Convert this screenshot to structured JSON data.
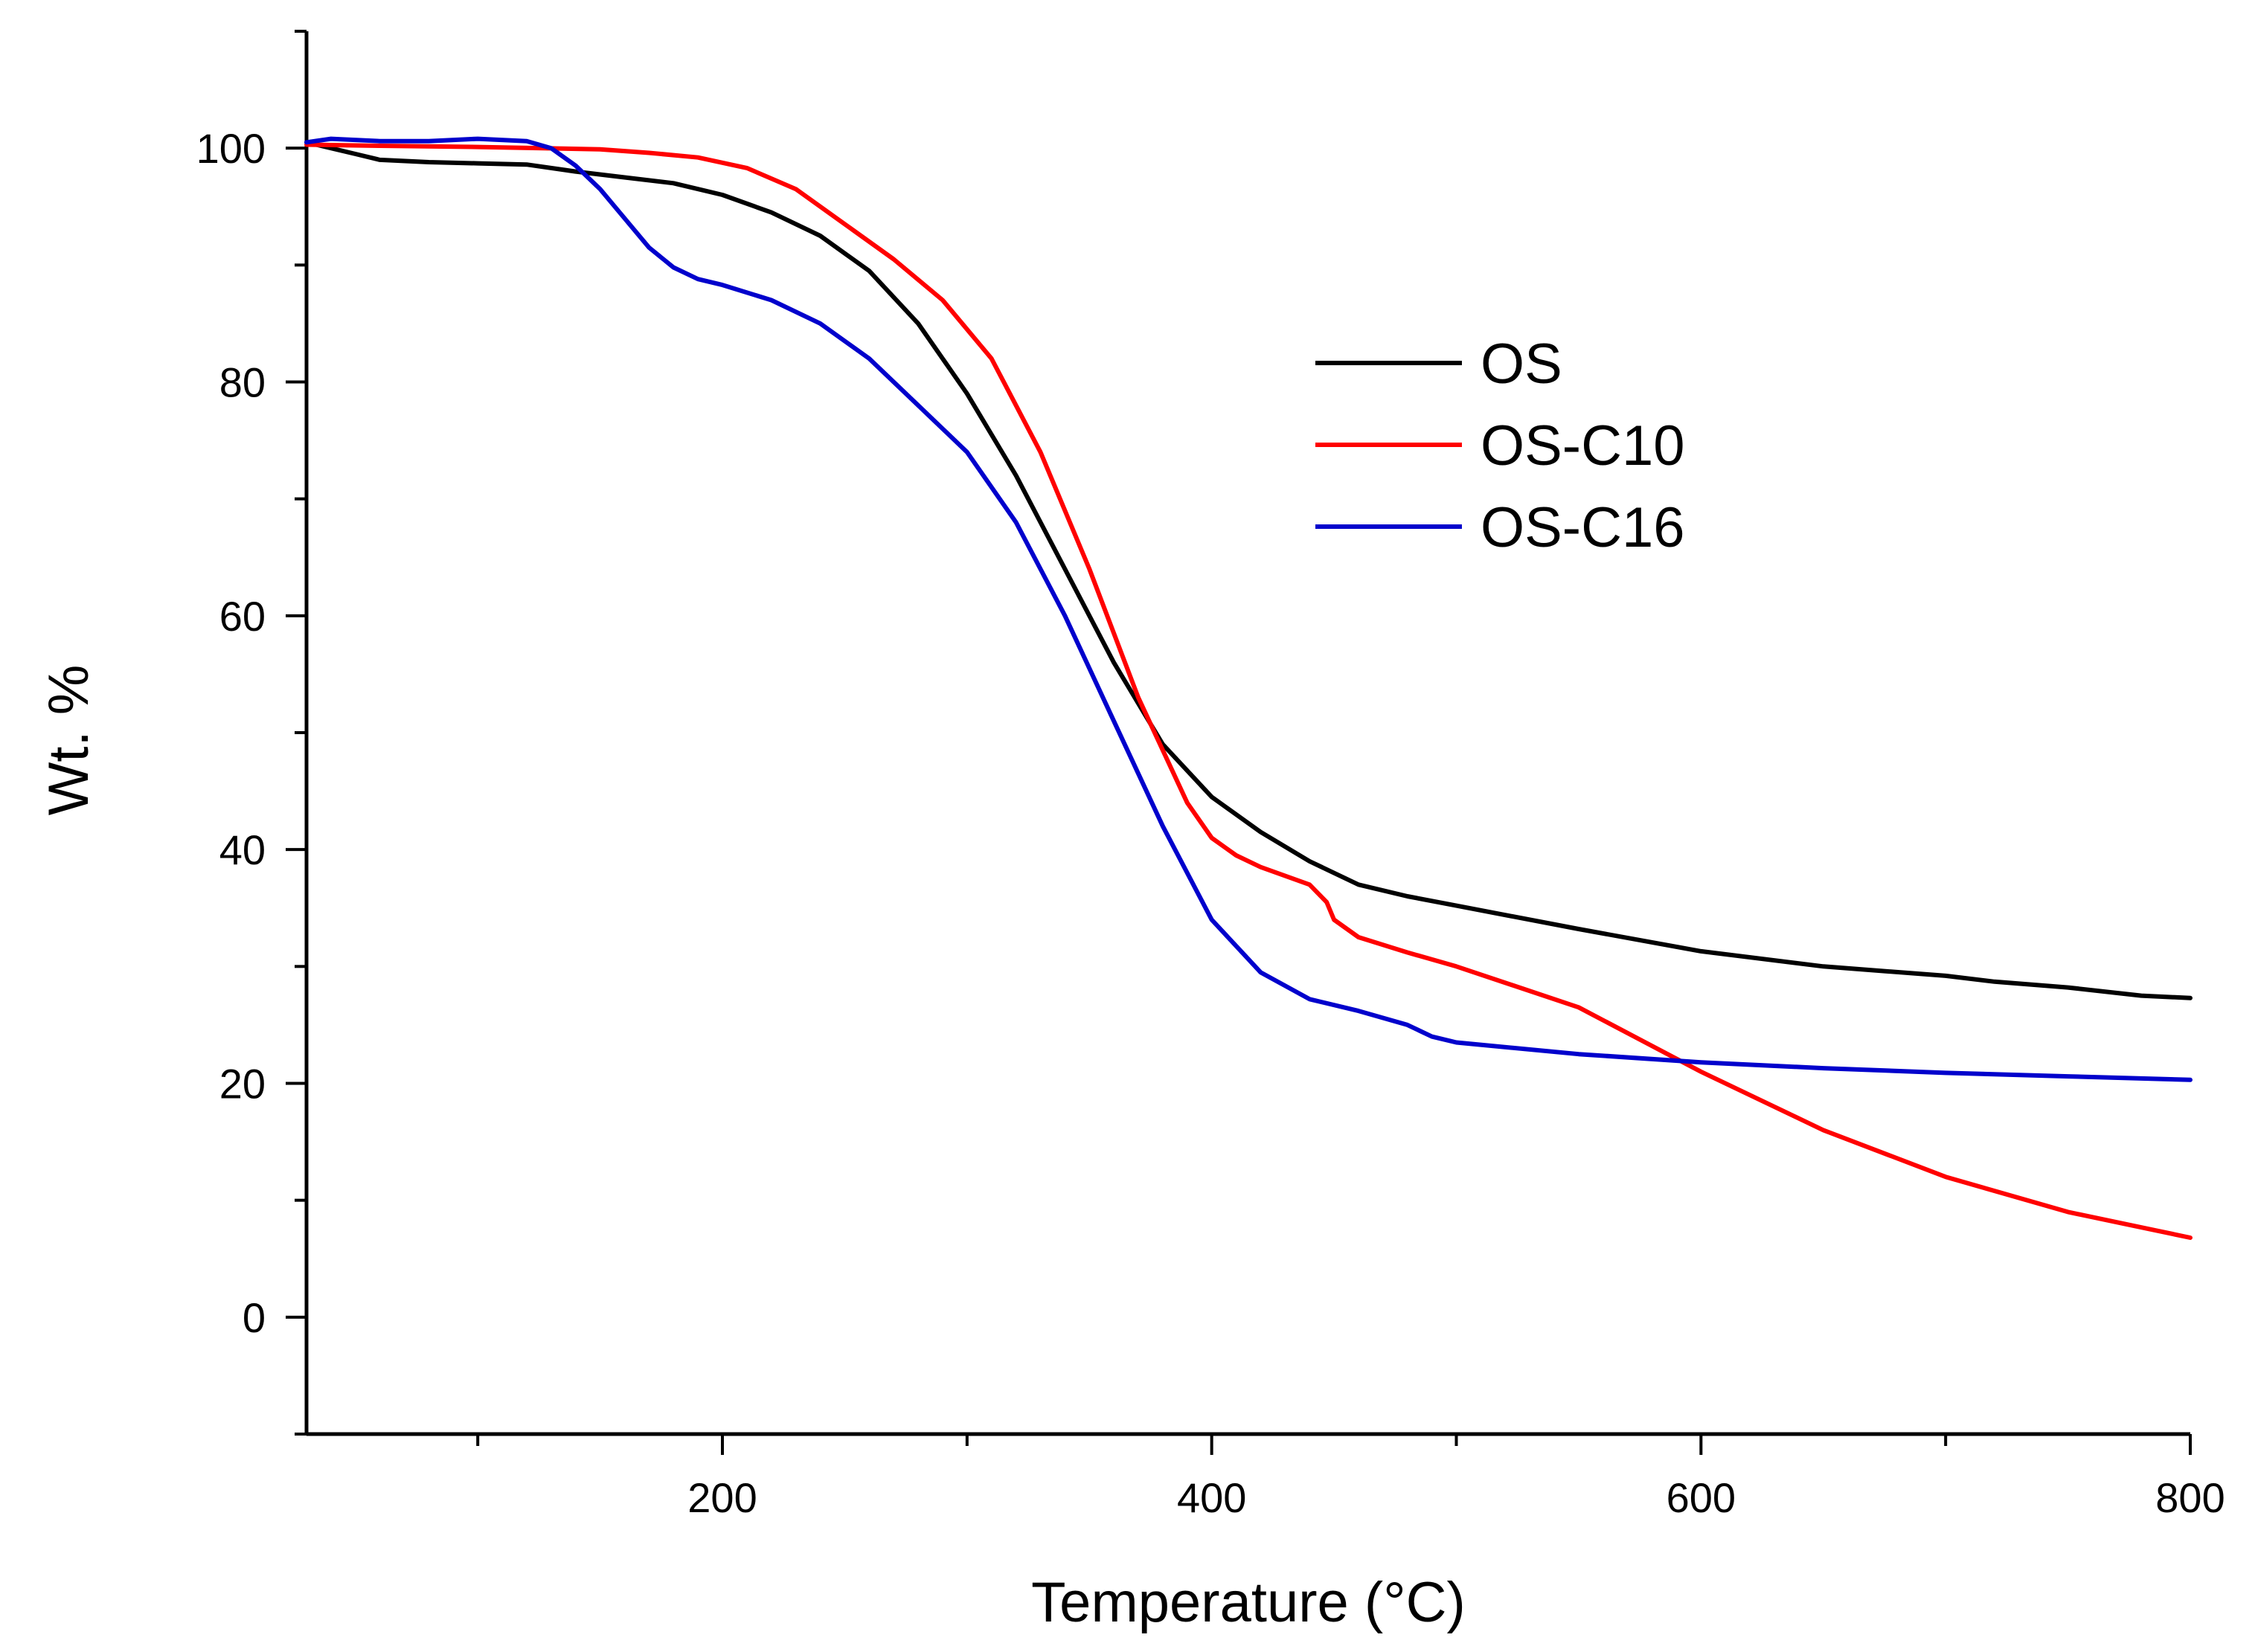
{
  "chart_data": {
    "type": "line",
    "xlabel": "Temperature (°C)",
    "ylabel": "Wt. %",
    "xlim": [
      30,
      800
    ],
    "ylim": [
      -10,
      110
    ],
    "x_ticks": [
      200,
      400,
      600,
      800
    ],
    "x_minor_ticks": [
      100,
      300,
      500,
      700
    ],
    "y_ticks": [
      0,
      20,
      40,
      60,
      80,
      100
    ],
    "y_minor_ticks": [
      -10,
      10,
      30,
      50,
      70,
      90,
      110
    ],
    "legend_position": "top-right",
    "series": [
      {
        "name": "OS",
        "color": "#000000",
        "points": [
          [
            30,
            100.5
          ],
          [
            40,
            100
          ],
          [
            50,
            99.5
          ],
          [
            60,
            99
          ],
          [
            80,
            98.8
          ],
          [
            100,
            98.7
          ],
          [
            120,
            98.6
          ],
          [
            140,
            98
          ],
          [
            160,
            97.5
          ],
          [
            180,
            97
          ],
          [
            200,
            96
          ],
          [
            220,
            94.5
          ],
          [
            240,
            92.5
          ],
          [
            260,
            89.5
          ],
          [
            280,
            85
          ],
          [
            300,
            79
          ],
          [
            320,
            72
          ],
          [
            340,
            64
          ],
          [
            360,
            56
          ],
          [
            380,
            49
          ],
          [
            400,
            44.5
          ],
          [
            420,
            41.5
          ],
          [
            440,
            39
          ],
          [
            460,
            37
          ],
          [
            480,
            36
          ],
          [
            500,
            35.2
          ],
          [
            550,
            33.2
          ],
          [
            600,
            31.3
          ],
          [
            650,
            30
          ],
          [
            700,
            29.2
          ],
          [
            720,
            28.7
          ],
          [
            750,
            28.2
          ],
          [
            780,
            27.5
          ],
          [
            800,
            27.3
          ]
        ]
      },
      {
        "name": "OS-C10",
        "color": "#ff0000",
        "points": [
          [
            30,
            100.3
          ],
          [
            60,
            100.2
          ],
          [
            100,
            100.1
          ],
          [
            150,
            99.9
          ],
          [
            170,
            99.6
          ],
          [
            190,
            99.2
          ],
          [
            210,
            98.3
          ],
          [
            230,
            96.5
          ],
          [
            250,
            93.5
          ],
          [
            270,
            90.5
          ],
          [
            290,
            87
          ],
          [
            310,
            82
          ],
          [
            330,
            74
          ],
          [
            350,
            64
          ],
          [
            370,
            53
          ],
          [
            390,
            44
          ],
          [
            400,
            41
          ],
          [
            410,
            39.5
          ],
          [
            420,
            38.5
          ],
          [
            440,
            37
          ],
          [
            447,
            35.5
          ],
          [
            450,
            34
          ],
          [
            460,
            32.5
          ],
          [
            480,
            31.2
          ],
          [
            500,
            30
          ],
          [
            550,
            26.5
          ],
          [
            600,
            21
          ],
          [
            650,
            16
          ],
          [
            700,
            12
          ],
          [
            750,
            9
          ],
          [
            800,
            6.8
          ]
        ]
      },
      {
        "name": "OS-C16",
        "color": "#0000cc",
        "points": [
          [
            30,
            100.5
          ],
          [
            40,
            100.8
          ],
          [
            60,
            100.6
          ],
          [
            80,
            100.6
          ],
          [
            100,
            100.8
          ],
          [
            120,
            100.6
          ],
          [
            130,
            100
          ],
          [
            140,
            98.5
          ],
          [
            150,
            96.5
          ],
          [
            160,
            94
          ],
          [
            170,
            91.5
          ],
          [
            180,
            89.8
          ],
          [
            190,
            88.8
          ],
          [
            200,
            88.3
          ],
          [
            220,
            87
          ],
          [
            240,
            85
          ],
          [
            260,
            82
          ],
          [
            280,
            78
          ],
          [
            300,
            74
          ],
          [
            320,
            68
          ],
          [
            340,
            60
          ],
          [
            360,
            51
          ],
          [
            380,
            42
          ],
          [
            400,
            34
          ],
          [
            420,
            29.5
          ],
          [
            440,
            27.2
          ],
          [
            460,
            26.2
          ],
          [
            480,
            25
          ],
          [
            490,
            24
          ],
          [
            500,
            23.5
          ],
          [
            550,
            22.5
          ],
          [
            600,
            21.8
          ],
          [
            650,
            21.3
          ],
          [
            700,
            20.9
          ],
          [
            750,
            20.6
          ],
          [
            800,
            20.3
          ]
        ]
      }
    ]
  }
}
